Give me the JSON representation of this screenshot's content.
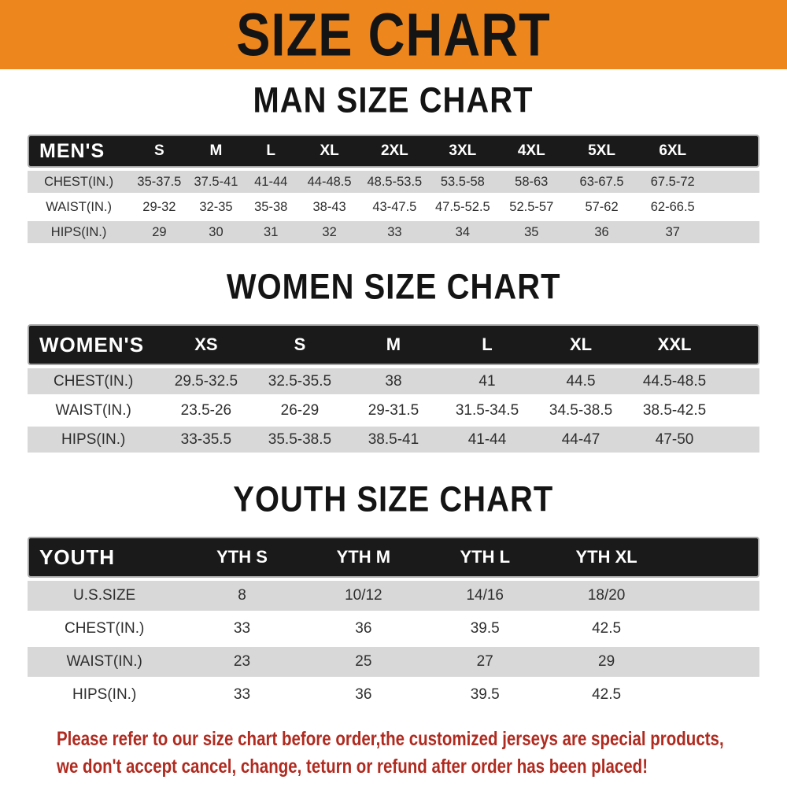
{
  "banner": {
    "title": "SIZE CHART"
  },
  "sections": [
    {
      "heading": "MAN SIZE CHART",
      "table": {
        "corner_label": "MEN'S",
        "columns": [
          "S",
          "M",
          "L",
          "XL",
          "2XL",
          "3XL",
          "4XL",
          "5XL",
          "6XL"
        ],
        "rows": [
          {
            "label": "CHEST(IN.)",
            "values": [
              "35-37.5",
              "37.5-41",
              "41-44",
              "44-48.5",
              "48.5-53.5",
              "53.5-58",
              "58-63",
              "63-67.5",
              "67.5-72"
            ]
          },
          {
            "label": "WAIST(IN.)",
            "values": [
              "29-32",
              "32-35",
              "35-38",
              "38-43",
              "43-47.5",
              "47.5-52.5",
              "52.5-57",
              "57-62",
              "62-66.5"
            ]
          },
          {
            "label": "HIPS(IN.)",
            "values": [
              "29",
              "30",
              "31",
              "32",
              "33",
              "34",
              "35",
              "36",
              "37"
            ]
          }
        ]
      }
    },
    {
      "heading": "WOMEN SIZE CHART",
      "table": {
        "corner_label": "WOMEN'S",
        "columns": [
          "XS",
          "S",
          "M",
          "L",
          "XL",
          "XXL"
        ],
        "rows": [
          {
            "label": "CHEST(IN.)",
            "values": [
              "29.5-32.5",
              "32.5-35.5",
              "38",
              "41",
              "44.5",
              "44.5-48.5"
            ]
          },
          {
            "label": "WAIST(IN.)",
            "values": [
              "23.5-26",
              "26-29",
              "29-31.5",
              "31.5-34.5",
              "34.5-38.5",
              "38.5-42.5"
            ]
          },
          {
            "label": "HIPS(IN.)",
            "values": [
              "33-35.5",
              "35.5-38.5",
              "38.5-41",
              "41-44",
              "44-47",
              "47-50"
            ]
          }
        ]
      }
    },
    {
      "heading": "YOUTH SIZE CHART",
      "table": {
        "corner_label": "YOUTH",
        "columns": [
          "YTH S",
          "YTH M",
          "YTH L",
          "YTH XL"
        ],
        "rows": [
          {
            "label": "U.S.SIZE",
            "values": [
              "8",
              "10/12",
              "14/16",
              "18/20"
            ]
          },
          {
            "label": "CHEST(IN.)",
            "values": [
              "33",
              "36",
              "39.5",
              "42.5"
            ]
          },
          {
            "label": "WAIST(IN.)",
            "values": [
              "23",
              "25",
              "27",
              "29"
            ]
          },
          {
            "label": "HIPS(IN.)",
            "values": [
              "33",
              "36",
              "39.5",
              "42.5"
            ]
          }
        ]
      }
    }
  ],
  "footer": {
    "lines": [
      "Please refer to our size chart before order,the customized jerseys are special products,",
      "we don't accept cancel, change, teturn or refund after order has been placed!"
    ]
  },
  "colors": {
    "banner_orange": "#ed861d",
    "header_black": "#1a1a1a",
    "row_gray": "#d8d8d8",
    "notice_red": "#b02a1f"
  }
}
